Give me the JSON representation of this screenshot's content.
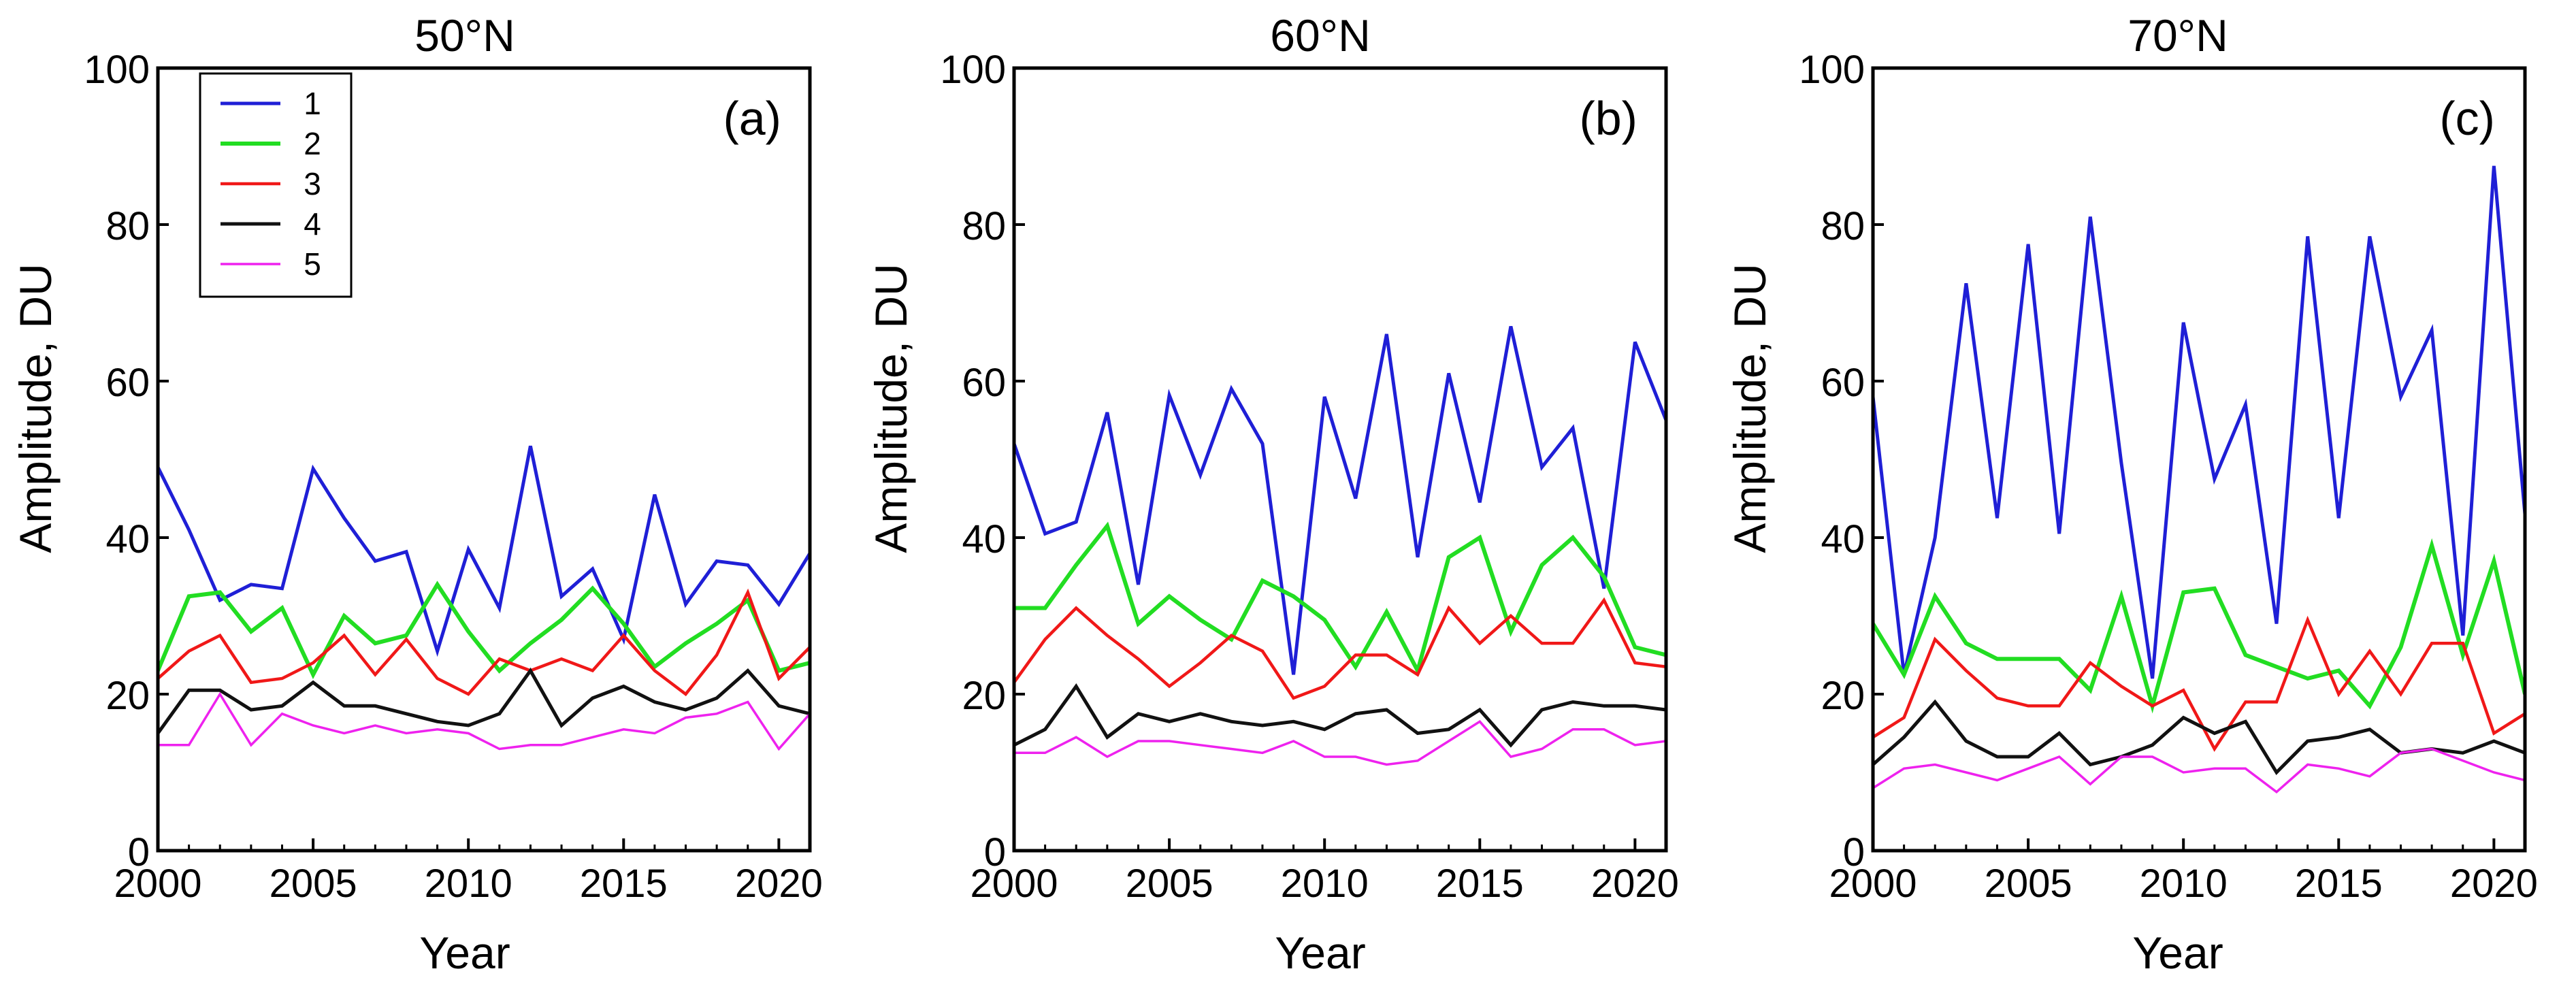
{
  "chart_data": [
    {
      "type": "line",
      "title": "50°N",
      "panel_label": "(a)",
      "xlabel": "Year",
      "ylabel": "Amplitude, DU",
      "xlim": [
        2000,
        2021
      ],
      "ylim": [
        0,
        100
      ],
      "xticks": [
        2000,
        2005,
        2010,
        2015,
        2020
      ],
      "yticks": [
        0,
        20,
        40,
        60,
        80,
        100
      ],
      "grid": false,
      "show_legend": true,
      "legend_position": "top-left",
      "x": [
        2000,
        2001,
        2002,
        2003,
        2004,
        2005,
        2006,
        2007,
        2008,
        2009,
        2010,
        2011,
        2012,
        2013,
        2014,
        2015,
        2016,
        2017,
        2018,
        2019,
        2020,
        2021
      ],
      "series": [
        {
          "name": "1",
          "color": "#1f1fd6",
          "values": [
            49,
            41,
            32,
            34,
            33.5,
            48.8,
            42.5,
            37,
            38.2,
            25.5,
            38.5,
            31,
            51.7,
            32.5,
            36,
            27,
            45.5,
            31.5,
            37,
            36.5,
            31.5,
            38
          ]
        },
        {
          "name": "2",
          "color": "#22dd22",
          "values": [
            23,
            32.5,
            33,
            28,
            31,
            22.5,
            30,
            26.5,
            27.5,
            34,
            28,
            23,
            26.5,
            29.5,
            33.5,
            29,
            23.5,
            26.5,
            29,
            32,
            23,
            24
          ]
        },
        {
          "name": "3",
          "color": "#f01818",
          "values": [
            22,
            25.5,
            27.5,
            21.5,
            22,
            24,
            27.5,
            22.5,
            27,
            22,
            20,
            24.5,
            23,
            24.5,
            23,
            27.5,
            23,
            20,
            25,
            33,
            22,
            26
          ]
        },
        {
          "name": "4",
          "color": "#111111",
          "values": [
            15,
            20.5,
            20.5,
            18,
            18.5,
            21.5,
            18.5,
            18.5,
            17.5,
            16.5,
            16,
            17.5,
            23,
            16,
            19.5,
            21,
            19,
            18,
            19.5,
            23,
            18.5,
            17.5
          ]
        },
        {
          "name": "5",
          "color": "#ee22ee",
          "values": [
            13.5,
            13.5,
            20,
            13.5,
            17.5,
            16,
            15,
            16,
            15,
            15.5,
            15,
            13,
            13.5,
            13.5,
            14.5,
            15.5,
            15,
            17,
            17.5,
            19,
            13,
            17.5
          ]
        }
      ]
    },
    {
      "type": "line",
      "title": "60°N",
      "panel_label": "(b)",
      "xlabel": "Year",
      "ylabel": "Amplitude, DU",
      "xlim": [
        2000,
        2021
      ],
      "ylim": [
        0,
        100
      ],
      "xticks": [
        2000,
        2005,
        2010,
        2015,
        2020
      ],
      "yticks": [
        0,
        20,
        40,
        60,
        80,
        100
      ],
      "grid": false,
      "show_legend": false,
      "x": [
        2000,
        2001,
        2002,
        2003,
        2004,
        2005,
        2006,
        2007,
        2008,
        2009,
        2010,
        2011,
        2012,
        2013,
        2014,
        2015,
        2016,
        2017,
        2018,
        2019,
        2020,
        2021
      ],
      "series": [
        {
          "name": "1",
          "color": "#1f1fd6",
          "values": [
            52,
            40.5,
            42,
            56,
            34,
            58.2,
            48,
            59,
            52,
            22.5,
            58,
            45,
            66,
            37.5,
            61,
            44.5,
            67,
            49,
            54,
            33.5,
            65,
            55
          ]
        },
        {
          "name": "2",
          "color": "#22dd22",
          "values": [
            31,
            31,
            36.5,
            41.5,
            29,
            32.5,
            29.5,
            27,
            34.5,
            32.5,
            29.5,
            23.5,
            30.5,
            23,
            37.5,
            40,
            28,
            36.5,
            40,
            35,
            26,
            25
          ]
        },
        {
          "name": "3",
          "color": "#f01818",
          "values": [
            21.5,
            27,
            31,
            27.5,
            24.5,
            21,
            24,
            27.5,
            25.5,
            19.5,
            21,
            25,
            25,
            22.5,
            31,
            26.5,
            30,
            26.5,
            26.5,
            32,
            24,
            23.5
          ]
        },
        {
          "name": "4",
          "color": "#111111",
          "values": [
            13.5,
            15.5,
            21,
            14.5,
            17.5,
            16.5,
            17.5,
            16.5,
            16,
            16.5,
            15.5,
            17.5,
            18,
            15,
            15.5,
            18,
            13.5,
            18,
            19,
            18.5,
            18.5,
            18
          ]
        },
        {
          "name": "5",
          "color": "#ee22ee",
          "values": [
            12.5,
            12.5,
            14.5,
            12,
            14,
            14,
            13.5,
            13,
            12.5,
            14,
            12,
            12,
            11,
            11.5,
            14,
            16.5,
            12,
            13,
            15.5,
            15.5,
            13.5,
            14
          ]
        }
      ]
    },
    {
      "type": "line",
      "title": "70°N",
      "panel_label": "(c)",
      "xlabel": "Year",
      "ylabel": "Amplitude, DU",
      "xlim": [
        2000,
        2021
      ],
      "ylim": [
        0,
        100
      ],
      "xticks": [
        2000,
        2005,
        2010,
        2015,
        2020
      ],
      "yticks": [
        0,
        20,
        40,
        60,
        80,
        100
      ],
      "grid": false,
      "show_legend": false,
      "x": [
        2000,
        2001,
        2002,
        2003,
        2004,
        2005,
        2006,
        2007,
        2008,
        2009,
        2010,
        2011,
        2012,
        2013,
        2014,
        2015,
        2016,
        2017,
        2018,
        2019,
        2020,
        2021
      ],
      "series": [
        {
          "name": "1",
          "color": "#1f1fd6",
          "values": [
            58,
            22.5,
            40,
            72.5,
            42.5,
            77.5,
            40.5,
            81,
            49.5,
            22,
            67.5,
            47.5,
            57,
            29,
            78.5,
            42.5,
            78.5,
            58,
            66.5,
            27.5,
            87.5,
            43
          ]
        },
        {
          "name": "2",
          "color": "#22dd22",
          "values": [
            29,
            22.5,
            32.5,
            26.5,
            24.5,
            24.5,
            24.5,
            20.5,
            32.5,
            18.5,
            33,
            33.5,
            25,
            23.5,
            22,
            23,
            18.5,
            26,
            39,
            25,
            37,
            20
          ]
        },
        {
          "name": "3",
          "color": "#f01818",
          "values": [
            14.5,
            17,
            27,
            23,
            19.5,
            18.5,
            18.5,
            24,
            21,
            18.5,
            20.5,
            13,
            19,
            19,
            29.5,
            20,
            25.5,
            20,
            26.5,
            26.5,
            15,
            17.5
          ]
        },
        {
          "name": "4",
          "color": "#111111",
          "values": [
            11,
            14.5,
            19,
            14,
            12,
            12,
            15,
            11,
            12,
            13.5,
            17,
            15,
            16.5,
            10,
            14,
            14.5,
            15.5,
            12.5,
            13,
            12.5,
            14,
            12.5
          ]
        },
        {
          "name": "5",
          "color": "#ee22ee",
          "values": [
            8,
            10.5,
            11,
            10,
            9,
            10.5,
            12,
            8.5,
            12,
            12,
            10,
            10.5,
            10.5,
            7.5,
            11,
            10.5,
            9.5,
            12.5,
            13,
            11.5,
            10,
            9
          ]
        }
      ]
    }
  ]
}
